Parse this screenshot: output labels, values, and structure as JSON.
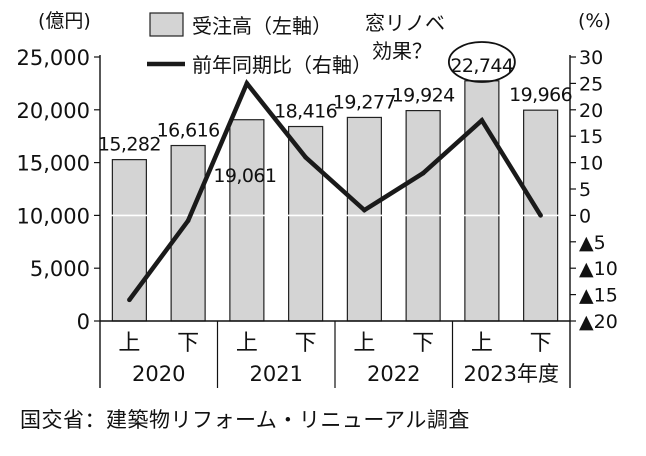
{
  "chart_data": {
    "type": "bar+line",
    "categories": [
      "上",
      "下",
      "上",
      "下",
      "上",
      "下",
      "上",
      "下"
    ],
    "year_groups": [
      "2020",
      "2021",
      "2022",
      "2023年度"
    ],
    "series": [
      {
        "name": "受注高（左軸）",
        "type": "bar",
        "axis": "left",
        "values": [
          15282,
          16616,
          19061,
          18416,
          19277,
          19924,
          22744,
          19966
        ],
        "labels": [
          "15,282",
          "16,616",
          "19,061",
          "18,416",
          "19,277",
          "19,924",
          "22,744",
          "19,966"
        ]
      },
      {
        "name": "前年同期比（右軸）",
        "type": "line",
        "axis": "right",
        "values": [
          -16,
          -1,
          25,
          11,
          1,
          8,
          18,
          0
        ]
      }
    ],
    "left_axis": {
      "unit": "(億円)",
      "ylim": [
        0,
        25000
      ],
      "ticks": [
        0,
        5000,
        10000,
        15000,
        20000,
        25000
      ],
      "tick_labels": [
        "0",
        "5,000",
        "10,000",
        "15,000",
        "20,000",
        "25,000"
      ]
    },
    "right_axis": {
      "unit": "(%)",
      "ylim": [
        -20,
        30
      ],
      "ticks": [
        30,
        25,
        20,
        15,
        10,
        5,
        0,
        -5,
        -10,
        -15,
        -20
      ],
      "tick_labels": [
        "30",
        "25",
        "20",
        "15",
        "10",
        "5",
        "0",
        "▲5",
        "▲10",
        "▲15",
        "▲20"
      ]
    },
    "annotation": {
      "text_lines": [
        "窓リノベ",
        "効果？"
      ],
      "target_label": "22,744"
    },
    "gridline_value": 10000
  },
  "source_note": "国交省：建築物リフォーム・リニューアル調査",
  "colors": {
    "bar_fill": "#d4d4d4",
    "bar_stroke": "#222222",
    "line": "#1a1a1a",
    "grid": "#ffffff"
  }
}
